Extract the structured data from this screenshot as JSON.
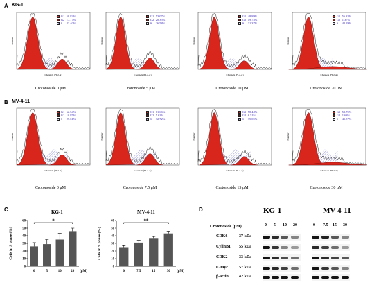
{
  "panels": {
    "a": "A",
    "b": "B",
    "c": "C",
    "d": "D"
  },
  "rows": {
    "a_cell": "KG-1",
    "b_cell": "MV-4-11"
  },
  "flow": {
    "axis_x": "Channels (FL2-A)",
    "axis_y": "Number",
    "legend_names": [
      "G1",
      "G2",
      "S"
    ],
    "colors": {
      "g1": "#d9261c",
      "g2": "#7a1810",
      "s": "#8a8ad8",
      "trace": "#222222"
    },
    "kg1": [
      {
        "caption": "Crotonoside 0 μM",
        "vals": [
          "58.83%",
          "17.77%",
          "23.40%"
        ]
      },
      {
        "caption": "Crotonoside 5 μM",
        "vals": [
          "53.07%",
          "20.35%",
          "26.58%"
        ]
      },
      {
        "caption": "Crotonoside 10 μM",
        "vals": [
          "48.89%",
          "19.74%",
          "31.37%"
        ]
      },
      {
        "caption": "Crotonoside 20 μM",
        "vals": [
          "56.33%",
          "1.37%",
          "42.29%"
        ]
      }
    ],
    "mv": [
      {
        "caption": "Crotonoside 0 μM",
        "vals": [
          "62.54%",
          "10.85%",
          "25.61%"
        ]
      },
      {
        "caption": "Crotonoside 7.5 μM",
        "vals": [
          "61.66%",
          "5.62%",
          "32.72%"
        ]
      },
      {
        "caption": "Crotonoside 15 μM",
        "vals": [
          "58.44%",
          "6.51%",
          "35.05%"
        ]
      },
      {
        "caption": "Crotonoside 30 μM",
        "vals": [
          "52.75%",
          "1.68%",
          "45.57%"
        ]
      }
    ]
  },
  "chart_data": [
    {
      "type": "bar",
      "title": "KG-1",
      "ylabel": "Cells in S phase (%)",
      "xunit": "(μM)",
      "categories": [
        "0",
        "5",
        "10",
        "20"
      ],
      "values": [
        26,
        29,
        35,
        46
      ],
      "errors": [
        5,
        6,
        8,
        4
      ],
      "ylim": [
        0,
        60
      ],
      "yticks": [
        "0",
        "10",
        "20",
        "30",
        "40",
        "50",
        "60"
      ],
      "significance": "*",
      "bar_color": "#555555"
    },
    {
      "type": "bar",
      "title": "MV-4-11",
      "ylabel": "Cells in S phase (%)",
      "xunit": "(μM)",
      "categories": [
        "0",
        "7.5",
        "15",
        "30"
      ],
      "values": [
        25,
        31,
        37,
        43
      ],
      "errors": [
        2,
        3,
        2,
        3
      ],
      "ylim": [
        0,
        60
      ],
      "yticks": [
        "0",
        "10",
        "20",
        "30",
        "40",
        "50",
        "60"
      ],
      "significance": "**",
      "bar_color": "#555555"
    }
  ],
  "western": {
    "kg1_title": "KG-1",
    "mv_title": "MV-4-11",
    "dose_label": "Crotonoside (μM)",
    "kg1_doses": [
      "0",
      "5",
      "10",
      "20"
    ],
    "mv_doses": [
      "0",
      "7.5",
      "15",
      "30"
    ],
    "proteins": [
      {
        "name": "CDK6",
        "kda": "37 kDa"
      },
      {
        "name": "CylinB1",
        "kda": "55 kDa"
      },
      {
        "name": "CDK2",
        "kda": "33 kDa"
      },
      {
        "name": "C-myc",
        "kda": "57 kDa"
      },
      {
        "name": "β-actin",
        "kda": "42 kDa"
      }
    ]
  }
}
